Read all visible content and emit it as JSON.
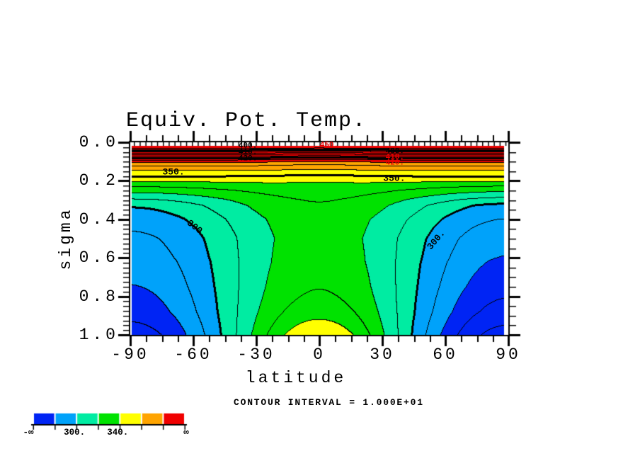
{
  "chart_data": {
    "type": "filled-contour",
    "title": "Equiv. Pot. Temp.",
    "xlabel": "latitude",
    "ylabel": "sigma",
    "note": "CONTOUR INTERVAL = 1.000E+01",
    "contour_interval": 10,
    "axes": {
      "x_range": [
        -90,
        90
      ],
      "y_range": [
        0,
        1
      ],
      "y_inverted_down": true,
      "x_ticks": [
        -90,
        -60,
        -30,
        0,
        30,
        60,
        90
      ],
      "x_tick_labels": [
        "-90",
        "-60",
        "-30",
        "0",
        "30",
        "60",
        "90"
      ],
      "y_ticks": [
        0.0,
        0.2,
        0.4,
        0.6,
        0.8,
        1.0
      ],
      "y_tick_labels": [
        "0.0",
        "0.2",
        "0.4",
        "0.6",
        "0.8",
        "1.0"
      ],
      "x_minor_step": 7.5,
      "y_minor_step_left": 0.025,
      "y_minor_step_right": 0.05
    },
    "line_levels": {
      "min": 260,
      "max": 470,
      "step": 10
    },
    "thick_levels": [
      300,
      350,
      400,
      450
    ],
    "top_red_level": 470,
    "fill_boundaries": [
      280,
      300,
      320,
      340,
      360,
      380
    ],
    "fill_colors": [
      "#0024f4",
      "#00a2fa",
      "#00eca2",
      "#00e200",
      "#ffff00",
      "#ffa400",
      "#f00000"
    ],
    "line_color": "#000000",
    "red_line_color": "#e80000",
    "colorbar": {
      "labels": [
        {
          "text": "-∞",
          "boundary": 0,
          "dx": -7
        },
        {
          "text": "300.",
          "boundary": 2,
          "dx": -3
        },
        {
          "text": "340.",
          "boundary": 4,
          "dx": -3
        },
        {
          "text": "∞",
          "boundary": 7,
          "dx": 2
        }
      ]
    },
    "contour_labels": [
      {
        "text": "350.",
        "lat": -69.4,
        "sigma": 0.154,
        "rot": 0,
        "color": "#000000",
        "size": 13
      },
      {
        "text": "350.",
        "lat": 35.7,
        "sigma": 0.187,
        "rot": 0,
        "color": "#000000",
        "size": 13
      },
      {
        "text": "300.",
        "lat": -58.3,
        "sigma": 0.449,
        "rot": 38,
        "color": "#000000",
        "size": 13
      },
      {
        "text": "300.",
        "lat": 55.6,
        "sigma": 0.507,
        "rot": -50,
        "color": "#000000",
        "size": 13
      },
      {
        "text": "450.",
        "lat": 4.7,
        "sigma": 0.018,
        "rot": 0,
        "color": "#e80000",
        "size": 11
      },
      {
        "text": "400.",
        "lat": -34.0,
        "sigma": 0.022,
        "rot": 0,
        "color": "#000000",
        "size": 11
      },
      {
        "text": "410.",
        "lat": -34.0,
        "sigma": 0.055,
        "rot": 0,
        "color": "#000000",
        "size": 11
      },
      {
        "text": "420.",
        "lat": -34.0,
        "sigma": 0.088,
        "rot": 0,
        "color": "#000000",
        "size": 11
      },
      {
        "text": "400.",
        "lat": 36.0,
        "sigma": 0.051,
        "rot": 0,
        "color": "#000000",
        "size": 11
      },
      {
        "text": "410.",
        "lat": 36.0,
        "sigma": 0.081,
        "rot": 0,
        "color": "#e80000",
        "size": 11
      },
      {
        "text": "420.",
        "lat": 36.0,
        "sigma": 0.11,
        "rot": 0,
        "color": "#e80000",
        "size": 11
      }
    ],
    "field_model": {
      "T_points": [
        [
          0,
          481
        ],
        [
          0.02,
          471
        ],
        [
          0.03,
          466
        ],
        [
          0.05,
          441
        ],
        [
          0.07,
          415
        ],
        [
          0.085,
          399
        ],
        [
          0.1,
          384
        ],
        [
          0.12,
          372
        ],
        [
          0.15,
          359.5
        ],
        [
          0.18,
          349.5
        ],
        [
          0.21,
          341.5
        ],
        [
          0.25,
          335
        ],
        [
          0.3,
          330.5
        ],
        [
          0.4,
          326
        ],
        [
          0.5,
          325
        ],
        [
          0.62,
          326.5
        ],
        [
          0.75,
          329.5
        ],
        [
          0.88,
          334
        ],
        [
          1.0,
          339.5
        ]
      ],
      "P_points": [
        [
          0,
          0
        ],
        [
          0.19,
          0
        ],
        [
          0.26,
          14
        ],
        [
          0.33,
          30
        ],
        [
          0.45,
          37
        ],
        [
          0.6,
          44
        ],
        [
          0.75,
          53
        ],
        [
          0.88,
          64
        ],
        [
          1.0,
          79
        ]
      ],
      "asym": 0.06,
      "surface_bump": {
        "amp": 10,
        "lat_width": 26,
        "s_start": 0.78
      },
      "upper_dip": {
        "amp": 5,
        "lat_width": 24,
        "s_end": 0.3
      }
    }
  }
}
